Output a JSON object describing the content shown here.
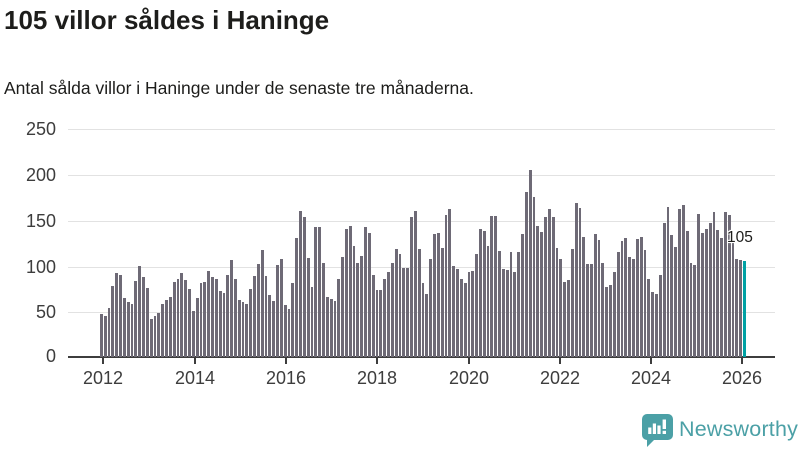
{
  "header": {
    "title": "105 villor såldes i Haninge",
    "subtitle": "Antal sålda villor i Haninge under de senaste tre månaderna."
  },
  "chart_data": {
    "type": "bar",
    "title": "105 villor såldes i Haninge",
    "subtitle": "Antal sålda villor i Haninge under de senaste tre månaderna.",
    "xlabel": "",
    "ylabel": "",
    "ylim": [
      0,
      250
    ],
    "grid": true,
    "legend": false,
    "y_tick_labels": [
      "250",
      "200",
      "150",
      "100",
      "50",
      "0"
    ],
    "x_tick_labels": [
      "2012",
      "2014",
      "2016",
      "2018",
      "2020",
      "2022",
      "2024",
      "2026"
    ],
    "start_month": "2012-01",
    "frequency": "monthly",
    "values": [
      47,
      45,
      54,
      78,
      92,
      90,
      65,
      60,
      58,
      83,
      100,
      88,
      76,
      42,
      45,
      48,
      58,
      62,
      66,
      82,
      86,
      92,
      84,
      75,
      51,
      65,
      81,
      82,
      94,
      88,
      85,
      72,
      70,
      90,
      106,
      86,
      63,
      60,
      58,
      75,
      89,
      102,
      117,
      89,
      68,
      61,
      101,
      108,
      57,
      53,
      81,
      130,
      160,
      154,
      109,
      77,
      143,
      143,
      103,
      66,
      64,
      61,
      85,
      110,
      140,
      144,
      122,
      103,
      111,
      143,
      136,
      90,
      73,
      74,
      85,
      93,
      103,
      118,
      113,
      98,
      98,
      154,
      160,
      118,
      81,
      69,
      107,
      135,
      136,
      120,
      156,
      162,
      100,
      97,
      85,
      81,
      93,
      94,
      113,
      140,
      138,
      122,
      155,
      155,
      116,
      96,
      95,
      115,
      93,
      115,
      135,
      181,
      205,
      176,
      144,
      137,
      154,
      162,
      154,
      120,
      107,
      82,
      84,
      118,
      169,
      163,
      132,
      102,
      102,
      135,
      128,
      103,
      77,
      79,
      93,
      115,
      127,
      130,
      110,
      108,
      129,
      132,
      117,
      85,
      71,
      69,
      90,
      147,
      165,
      134,
      121,
      162,
      167,
      138,
      103,
      101,
      157,
      136,
      140,
      147,
      159,
      139,
      131,
      159,
      156,
      126,
      108,
      106,
      105
    ],
    "highlight": {
      "index": 168,
      "value": 105,
      "label": "105",
      "color": "#00a1a4"
    },
    "bar_color": "#6e6a76",
    "gridline_color": "#e2e2e2",
    "axis_color": "#3d3d3d"
  },
  "footer": {
    "brand": "Newsworthy",
    "brand_color": "#4ba0a6",
    "logo_icon": "newsworthy-speech-bubble-chart-icon"
  }
}
